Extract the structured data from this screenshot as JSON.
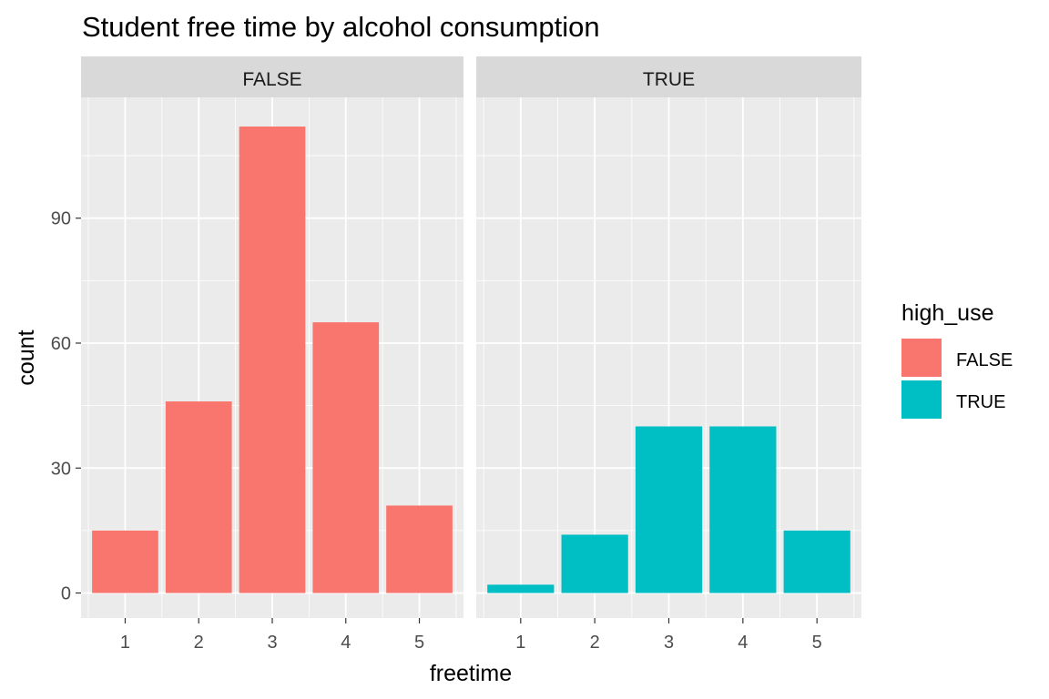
{
  "chart_data": {
    "type": "bar",
    "title": "Student free time by alcohol consumption",
    "xlabel": "freetime",
    "ylabel": "count",
    "categories": [
      "1",
      "2",
      "3",
      "4",
      "5"
    ],
    "y_ticks": [
      0,
      30,
      60,
      90
    ],
    "y_tick_labels": [
      "0",
      "30",
      "60",
      "90"
    ],
    "ylim": [
      -6,
      119
    ],
    "grid": true,
    "facets": [
      {
        "label": "FALSE",
        "color": "#F8766D",
        "values": [
          15,
          46,
          112,
          65,
          21
        ]
      },
      {
        "label": "TRUE",
        "color": "#00BFC4",
        "values": [
          2,
          14,
          40,
          40,
          15
        ]
      }
    ],
    "legend": {
      "title": "high_use",
      "position": "right",
      "items": [
        {
          "label": "FALSE",
          "color": "#F8766D"
        },
        {
          "label": "TRUE",
          "color": "#00BFC4"
        }
      ]
    }
  }
}
